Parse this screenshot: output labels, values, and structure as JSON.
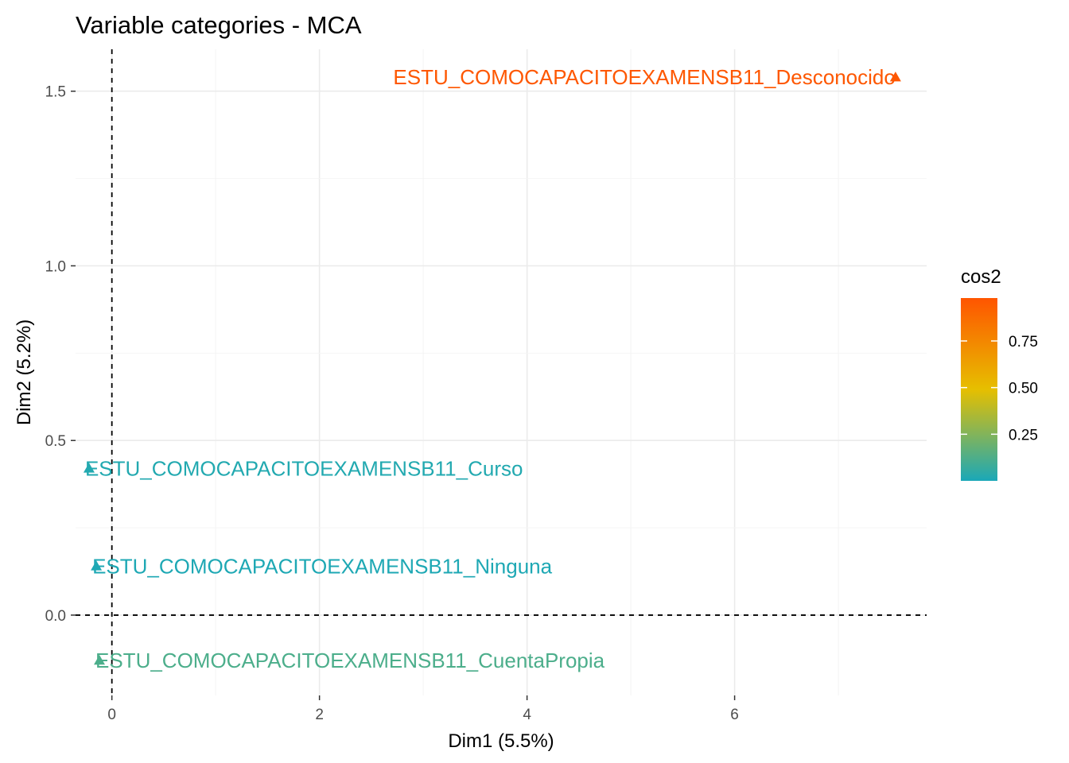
{
  "chart_data": {
    "type": "scatter",
    "title": "Variable categories - MCA",
    "xlabel": "Dim1 (5.5%)",
    "ylabel": "Dim2 (5.2%)",
    "xlim": [
      -0.35,
      7.85
    ],
    "ylim": [
      -0.23,
      1.62
    ],
    "x_ticks": [
      0,
      2,
      4,
      6
    ],
    "x_tick_labels": [
      "0",
      "2",
      "4",
      "6"
    ],
    "y_ticks": [
      0.0,
      0.5,
      1.0,
      1.5
    ],
    "y_tick_labels": [
      "0.0",
      "0.5",
      "1.0",
      "1.5"
    ],
    "grid": true,
    "reference_lines": {
      "x": 0,
      "y": 0,
      "style": "dashed"
    },
    "points": [
      {
        "label": "ESTU_COMOCAPACITOEXAMENSB11_Desconocido",
        "x": 7.55,
        "y": 1.54,
        "cos2": 0.97
      },
      {
        "label": "ESTU_COMOCAPACITOEXAMENSB11_Curso",
        "x": -0.22,
        "y": 0.42,
        "cos2": 0.02
      },
      {
        "label": "ESTU_COMOCAPACITOEXAMENSB11_Ninguna",
        "x": -0.15,
        "y": 0.14,
        "cos2": 0.01
      },
      {
        "label": "ESTU_COMOCAPACITOEXAMENSB11_CuentaPropia",
        "x": -0.12,
        "y": -0.13,
        "cos2": 0.12
      }
    ],
    "legend": {
      "title": "cos2",
      "position": "right",
      "min": 0.0,
      "max": 0.98,
      "ticks": [
        0.25,
        0.5,
        0.75
      ],
      "tick_labels": [
        "0.25",
        "0.50",
        "0.75"
      ],
      "colors": [
        "#1aa8b8",
        "#e6bf00",
        "#ff5500"
      ]
    }
  }
}
